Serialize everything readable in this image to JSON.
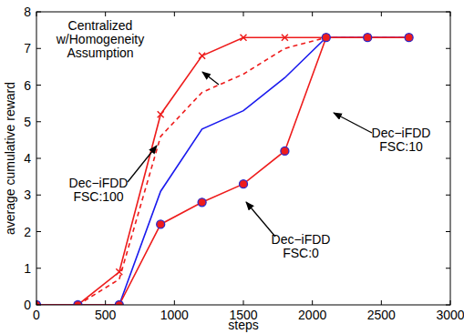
{
  "chart_data": {
    "type": "line",
    "xlabel": "steps",
    "ylabel": "average cumulative reward",
    "xlim": [
      0,
      3000
    ],
    "xticks": [
      0,
      500,
      1000,
      1500,
      2000,
      2500,
      3000
    ],
    "ylim": [
      0,
      8
    ],
    "yticks": [
      0,
      1,
      2,
      3,
      4,
      5,
      6,
      7,
      8
    ],
    "grid": false,
    "series": [
      {
        "name": "Centralized w/Homogeneity Assumption",
        "color": "#ee1c1c",
        "marker": "x",
        "line_style": "solid",
        "x": [
          0,
          300,
          600,
          900,
          1200,
          1500,
          1800,
          2100,
          2400,
          2700
        ],
        "values": [
          0,
          0,
          0.9,
          5.2,
          6.8,
          7.3,
          7.3,
          7.3,
          7.3,
          7.3
        ]
      },
      {
        "name": "Dec−iFDD FSC:100",
        "color": "#ee1c1c",
        "marker": "none",
        "line_style": "dashed",
        "x": [
          0,
          300,
          600,
          900,
          1200,
          1500,
          1800,
          2100,
          2400,
          2700
        ],
        "values": [
          0,
          0,
          0.7,
          4.6,
          5.8,
          6.3,
          7.0,
          7.3,
          7.3,
          7.3
        ]
      },
      {
        "name": "Dec−iFDD FSC:10",
        "color": "#1a1aee",
        "marker": "none",
        "line_style": "solid",
        "x": [
          0,
          300,
          600,
          900,
          1200,
          1500,
          1800,
          2100,
          2400,
          2700
        ],
        "values": [
          0,
          0,
          0,
          3.1,
          4.8,
          5.3,
          6.2,
          7.3,
          7.3,
          7.3
        ]
      },
      {
        "name": "Dec−iFDD FSC:0",
        "color": "#ee1c1c",
        "marker": "circle",
        "line_style": "solid",
        "x": [
          0,
          300,
          600,
          900,
          1200,
          1500,
          1800,
          2100,
          2400,
          2700
        ],
        "values": [
          0,
          0,
          0,
          2.2,
          2.8,
          3.3,
          4.2,
          7.3,
          7.3,
          7.3
        ]
      }
    ],
    "annotations": [
      {
        "text": [
          "Centralized",
          "w/Homogeneity",
          "Assumption"
        ]
      },
      {
        "text": [
          "Dec−iFDD",
          "FSC:100"
        ]
      },
      {
        "text": [
          "Dec−iFDD",
          "FSC:10"
        ]
      },
      {
        "text": [
          "Dec−iFDD",
          "FSC:0"
        ]
      }
    ]
  }
}
